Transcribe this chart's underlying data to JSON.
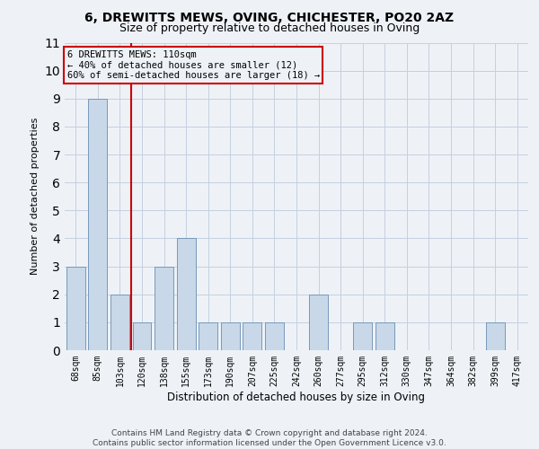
{
  "title": "6, DREWITTS MEWS, OVING, CHICHESTER, PO20 2AZ",
  "subtitle": "Size of property relative to detached houses in Oving",
  "xlabel": "Distribution of detached houses by size in Oving",
  "ylabel": "Number of detached properties",
  "footer_line1": "Contains HM Land Registry data © Crown copyright and database right 2024.",
  "footer_line2": "Contains public sector information licensed under the Open Government Licence v3.0.",
  "categories": [
    "68sqm",
    "85sqm",
    "103sqm",
    "120sqm",
    "138sqm",
    "155sqm",
    "173sqm",
    "190sqm",
    "207sqm",
    "225sqm",
    "242sqm",
    "260sqm",
    "277sqm",
    "295sqm",
    "312sqm",
    "330sqm",
    "347sqm",
    "364sqm",
    "382sqm",
    "399sqm",
    "417sqm"
  ],
  "values": [
    3,
    9,
    2,
    1,
    3,
    4,
    1,
    1,
    1,
    1,
    0,
    2,
    0,
    1,
    1,
    0,
    0,
    0,
    0,
    1,
    0
  ],
  "bar_color": "#c8d8e8",
  "bar_edge_color": "#7799bb",
  "subject_line_index": 2,
  "subject_line_color": "#cc0000",
  "ylim": [
    0,
    11
  ],
  "yticks": [
    0,
    1,
    2,
    3,
    4,
    5,
    6,
    7,
    8,
    9,
    10,
    11
  ],
  "annotation_line1": "6 DREWITTS MEWS: 110sqm",
  "annotation_line2": "← 40% of detached houses are smaller (12)",
  "annotation_line3": "60% of semi-detached houses are larger (18) →",
  "annotation_box_color": "#cc0000",
  "background_color": "#eef2f7",
  "grid_color": "#c5cfe0",
  "title_fontsize": 10,
  "subtitle_fontsize": 9,
  "ylabel_fontsize": 8,
  "xlabel_fontsize": 8.5,
  "tick_fontsize": 7,
  "footer_fontsize": 6.5,
  "annot_fontsize": 7.5
}
